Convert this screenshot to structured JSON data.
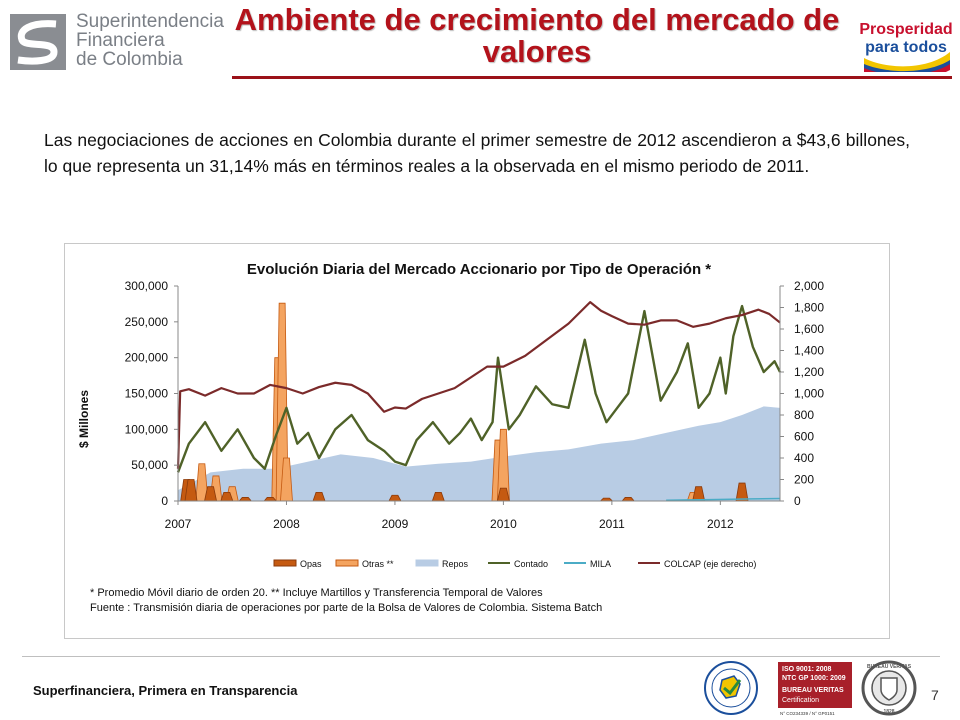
{
  "header": {
    "org_name_line1": "Superintendencia",
    "org_name_line2": "Financiera",
    "org_name_line3": "de Colombia",
    "title": "Ambiente de crecimiento del mercado de valores",
    "badge_line1": "Prosperidad",
    "badge_line2": "para todos"
  },
  "body": {
    "paragraph": "Las negociaciones de acciones en Colombia durante el primer semestre de 2012 ascendieron a $43,6 billones, lo que representa un 31,14% más en términos reales a la observada en el mismo periodo de 2011."
  },
  "colors": {
    "title_red": "#b3121b",
    "opas": "#c55a11",
    "otras": "#f4a460",
    "repos": "#b8cce4",
    "contado": "#4f6228",
    "mila": "#4bacc6",
    "colcap": "#7b2a2a"
  },
  "chart_data": {
    "type": "area",
    "title": "Evolución Diaria del Mercado  Accionario por Tipo de Operación *",
    "ylabel": "$ Millones",
    "x_tick_labels": [
      "2007",
      "2008",
      "2009",
      "2010",
      "2011",
      "2012"
    ],
    "y_tick_labels": [
      "0",
      "50,000",
      "100,000",
      "150,000",
      "200,000",
      "250,000",
      "300,000"
    ],
    "y2_tick_labels": [
      "0",
      "200",
      "400",
      "600",
      "800",
      "1,000",
      "1,200",
      "1,400",
      "1,600",
      "1,800",
      "2,000"
    ],
    "ylim": [
      0,
      300000
    ],
    "y2lim": [
      0,
      2000
    ],
    "xlim": [
      2007.0,
      2012.55
    ],
    "legend_position": "bottom",
    "series": [
      {
        "name": "Opas",
        "type": "area",
        "axis": "left",
        "x": [
          2007.08,
          2007.12,
          2007.3,
          2007.45,
          2007.62,
          2007.85,
          2008.3,
          2009.0,
          2009.4,
          2010.0,
          2010.95,
          2011.15,
          2011.8,
          2012.2
        ],
        "values": [
          30000,
          30000,
          20000,
          12000,
          5000,
          5000,
          12000,
          8000,
          12000,
          18000,
          4000,
          5000,
          20000,
          25000
        ]
      },
      {
        "name": "Otras **",
        "type": "area",
        "axis": "left",
        "x": [
          2007.1,
          2007.22,
          2007.35,
          2007.5,
          2007.92,
          2007.96,
          2008.0,
          2009.95,
          2010.0,
          2011.75
        ],
        "values": [
          20000,
          52000,
          35000,
          20000,
          200000,
          276000,
          60000,
          85000,
          100000,
          12000
        ]
      },
      {
        "name": "Repos",
        "type": "area",
        "axis": "left",
        "x": [
          2007.0,
          2007.3,
          2007.6,
          2007.9,
          2008.2,
          2008.5,
          2008.8,
          2009.1,
          2009.4,
          2009.7,
          2010.0,
          2010.3,
          2010.6,
          2010.9,
          2011.2,
          2011.5,
          2011.8,
          2012.0,
          2012.2,
          2012.4,
          2012.55
        ],
        "values": [
          15000,
          40000,
          45000,
          45000,
          55000,
          65000,
          60000,
          48000,
          52000,
          55000,
          62000,
          68000,
          72000,
          80000,
          85000,
          95000,
          105000,
          110000,
          120000,
          132000,
          130000
        ]
      },
      {
        "name": "Contado",
        "type": "line",
        "axis": "left",
        "x": [
          2007.0,
          2007.1,
          2007.25,
          2007.4,
          2007.55,
          2007.7,
          2007.8,
          2007.9,
          2008.0,
          2008.1,
          2008.2,
          2008.3,
          2008.45,
          2008.6,
          2008.75,
          2008.9,
          2009.0,
          2009.1,
          2009.2,
          2009.35,
          2009.5,
          2009.6,
          2009.7,
          2009.8,
          2009.9,
          2009.95,
          2010.05,
          2010.15,
          2010.3,
          2010.45,
          2010.6,
          2010.75,
          2010.85,
          2010.95,
          2011.05,
          2011.15,
          2011.3,
          2011.45,
          2011.6,
          2011.7,
          2011.8,
          2011.9,
          2012.0,
          2012.05,
          2012.12,
          2012.2,
          2012.3,
          2012.4,
          2012.5,
          2012.55
        ],
        "values": [
          40000,
          80000,
          110000,
          70000,
          100000,
          60000,
          45000,
          90000,
          130000,
          80000,
          95000,
          60000,
          100000,
          120000,
          85000,
          70000,
          55000,
          50000,
          85000,
          110000,
          80000,
          95000,
          115000,
          85000,
          110000,
          200000,
          100000,
          120000,
          160000,
          135000,
          130000,
          225000,
          150000,
          110000,
          130000,
          150000,
          265000,
          140000,
          180000,
          220000,
          130000,
          150000,
          200000,
          150000,
          230000,
          272000,
          215000,
          180000,
          195000,
          180000
        ]
      },
      {
        "name": "MILA",
        "type": "line",
        "axis": "left",
        "x": [
          2011.5,
          2011.7,
          2011.9,
          2012.1,
          2012.3,
          2012.55
        ],
        "values": [
          1000,
          1500,
          2000,
          2500,
          3000,
          3500
        ]
      },
      {
        "name": "COLCAP (eje derecho)",
        "type": "line",
        "axis": "right",
        "x": [
          2007.0,
          2007.02,
          2007.1,
          2007.25,
          2007.4,
          2007.55,
          2007.7,
          2007.85,
          2008.0,
          2008.15,
          2008.3,
          2008.45,
          2008.6,
          2008.75,
          2008.9,
          2009.0,
          2009.1,
          2009.25,
          2009.4,
          2009.55,
          2009.7,
          2009.85,
          2010.0,
          2010.2,
          2010.4,
          2010.6,
          2010.8,
          2010.9,
          2011.0,
          2011.15,
          2011.3,
          2011.45,
          2011.6,
          2011.75,
          2011.9,
          2012.05,
          2012.2,
          2012.35,
          2012.45,
          2012.55
        ],
        "values": [
          300,
          1020,
          1040,
          980,
          1050,
          1000,
          1000,
          1080,
          1050,
          1000,
          1060,
          1100,
          1080,
          1000,
          830,
          870,
          860,
          950,
          1000,
          1050,
          1150,
          1250,
          1250,
          1350,
          1500,
          1650,
          1850,
          1770,
          1720,
          1650,
          1640,
          1680,
          1680,
          1620,
          1650,
          1700,
          1730,
          1780,
          1740,
          1660
        ]
      }
    ],
    "footnote_line1": "* Promedio Móvil diario de orden  20.   ** Incluye Martillos y Transferencia Temporal de Valores",
    "footnote_line2": "Fuente : Transmisión diaria de operaciones por parte de la Bolsa de Valores de Colombia. Sistema Batch"
  },
  "footer": {
    "tagline": "Superfinanciera, Primera en Transparencia",
    "page_number": "7",
    "cert_iso": "ISO 9001: 2008",
    "cert_ntc": "NTC GP 1000: 2009",
    "cert_bv": "BUREAU VERITAS",
    "cert_cert": "Certification",
    "cert_nums": "N° CO234339 / N° GP0151",
    "cert_seal_text": "BUREAU VERITAS",
    "cert_seal_year": "1828"
  }
}
